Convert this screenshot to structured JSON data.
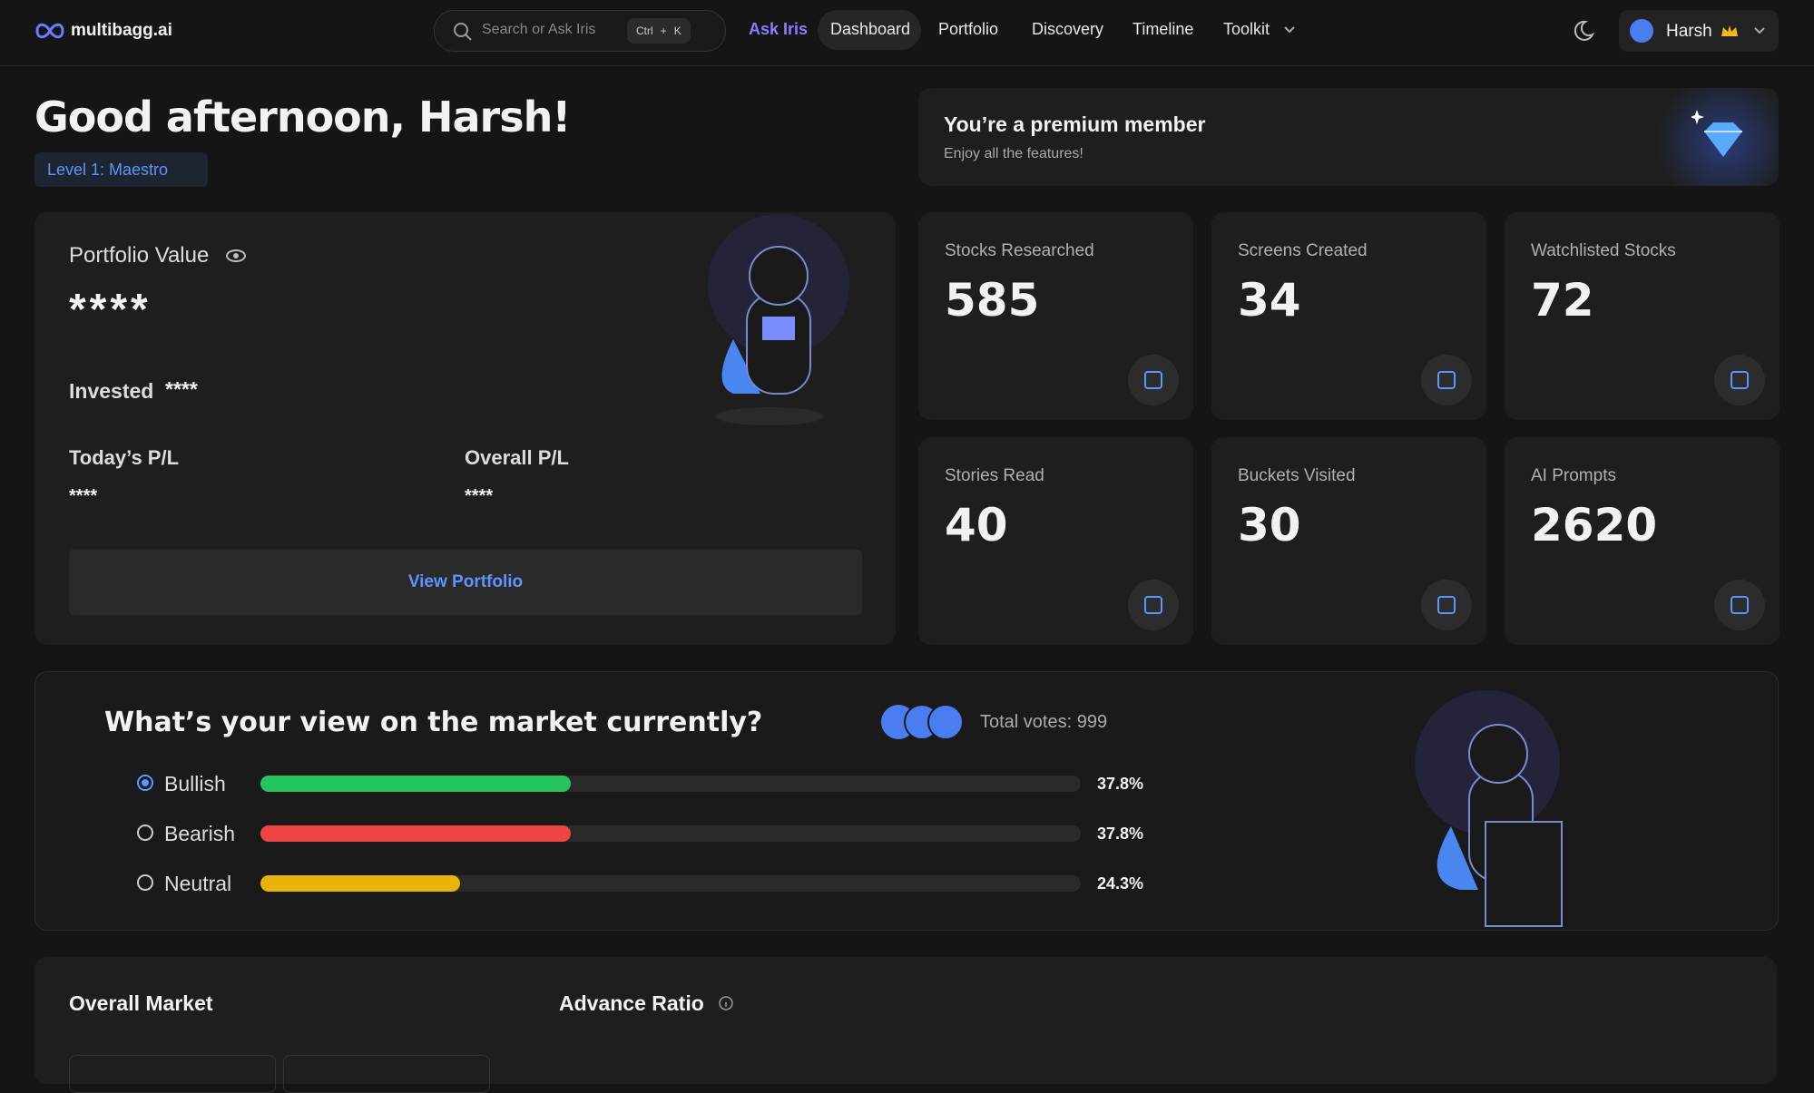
{
  "nav": {
    "logo": "multibagg.ai",
    "search_placeholder": "Search or Ask Iris",
    "shortcut": [
      "Ctrl",
      "+",
      "K"
    ],
    "links": [
      "Ask Iris",
      "Dashboard",
      "Portfolio",
      "Discovery",
      "Timeline",
      "Toolkit"
    ],
    "user": "Harsh"
  },
  "greeting": {
    "title": "Good afternoon, Harsh!",
    "level": "Level 1: Maestro"
  },
  "premium": {
    "title": "You’re a premium member",
    "subtitle": "Enjoy all the features!"
  },
  "portfolio": {
    "label": "Portfolio Value",
    "value": "****",
    "invested_label": "Invested",
    "invested_value": "****",
    "today_label": "Today’s P/L",
    "today_value": "****",
    "overall_label": "Overall P/L",
    "overall_value": "****",
    "button": "View Portfolio"
  },
  "stats": [
    {
      "label": "Stocks Researched",
      "value": 585
    },
    {
      "label": "Screens Created",
      "value": 34
    },
    {
      "label": "Watchlisted Stocks",
      "value": 72
    },
    {
      "label": "Stories Read",
      "value": 40
    },
    {
      "label": "Buckets Visited",
      "value": 30
    },
    {
      "label": "AI Prompts",
      "value": 2620
    }
  ],
  "poll": {
    "question": "What’s your view on the market currently?",
    "total_votes": "Total votes: 999",
    "options": [
      {
        "label": "Bullish",
        "value": 37.8,
        "value_label": "37.8%",
        "color": "#22c55e",
        "selected": true
      },
      {
        "label": "Bearish",
        "value": 37.8,
        "value_label": "37.8%",
        "color": "#ef4444",
        "selected": false
      },
      {
        "label": "Neutral",
        "value": 24.3,
        "value_label": "24.3%",
        "color": "#eab308",
        "selected": false
      }
    ]
  },
  "market": {
    "overall_title": "Overall Market",
    "advance_title": "Advance Ratio"
  }
}
